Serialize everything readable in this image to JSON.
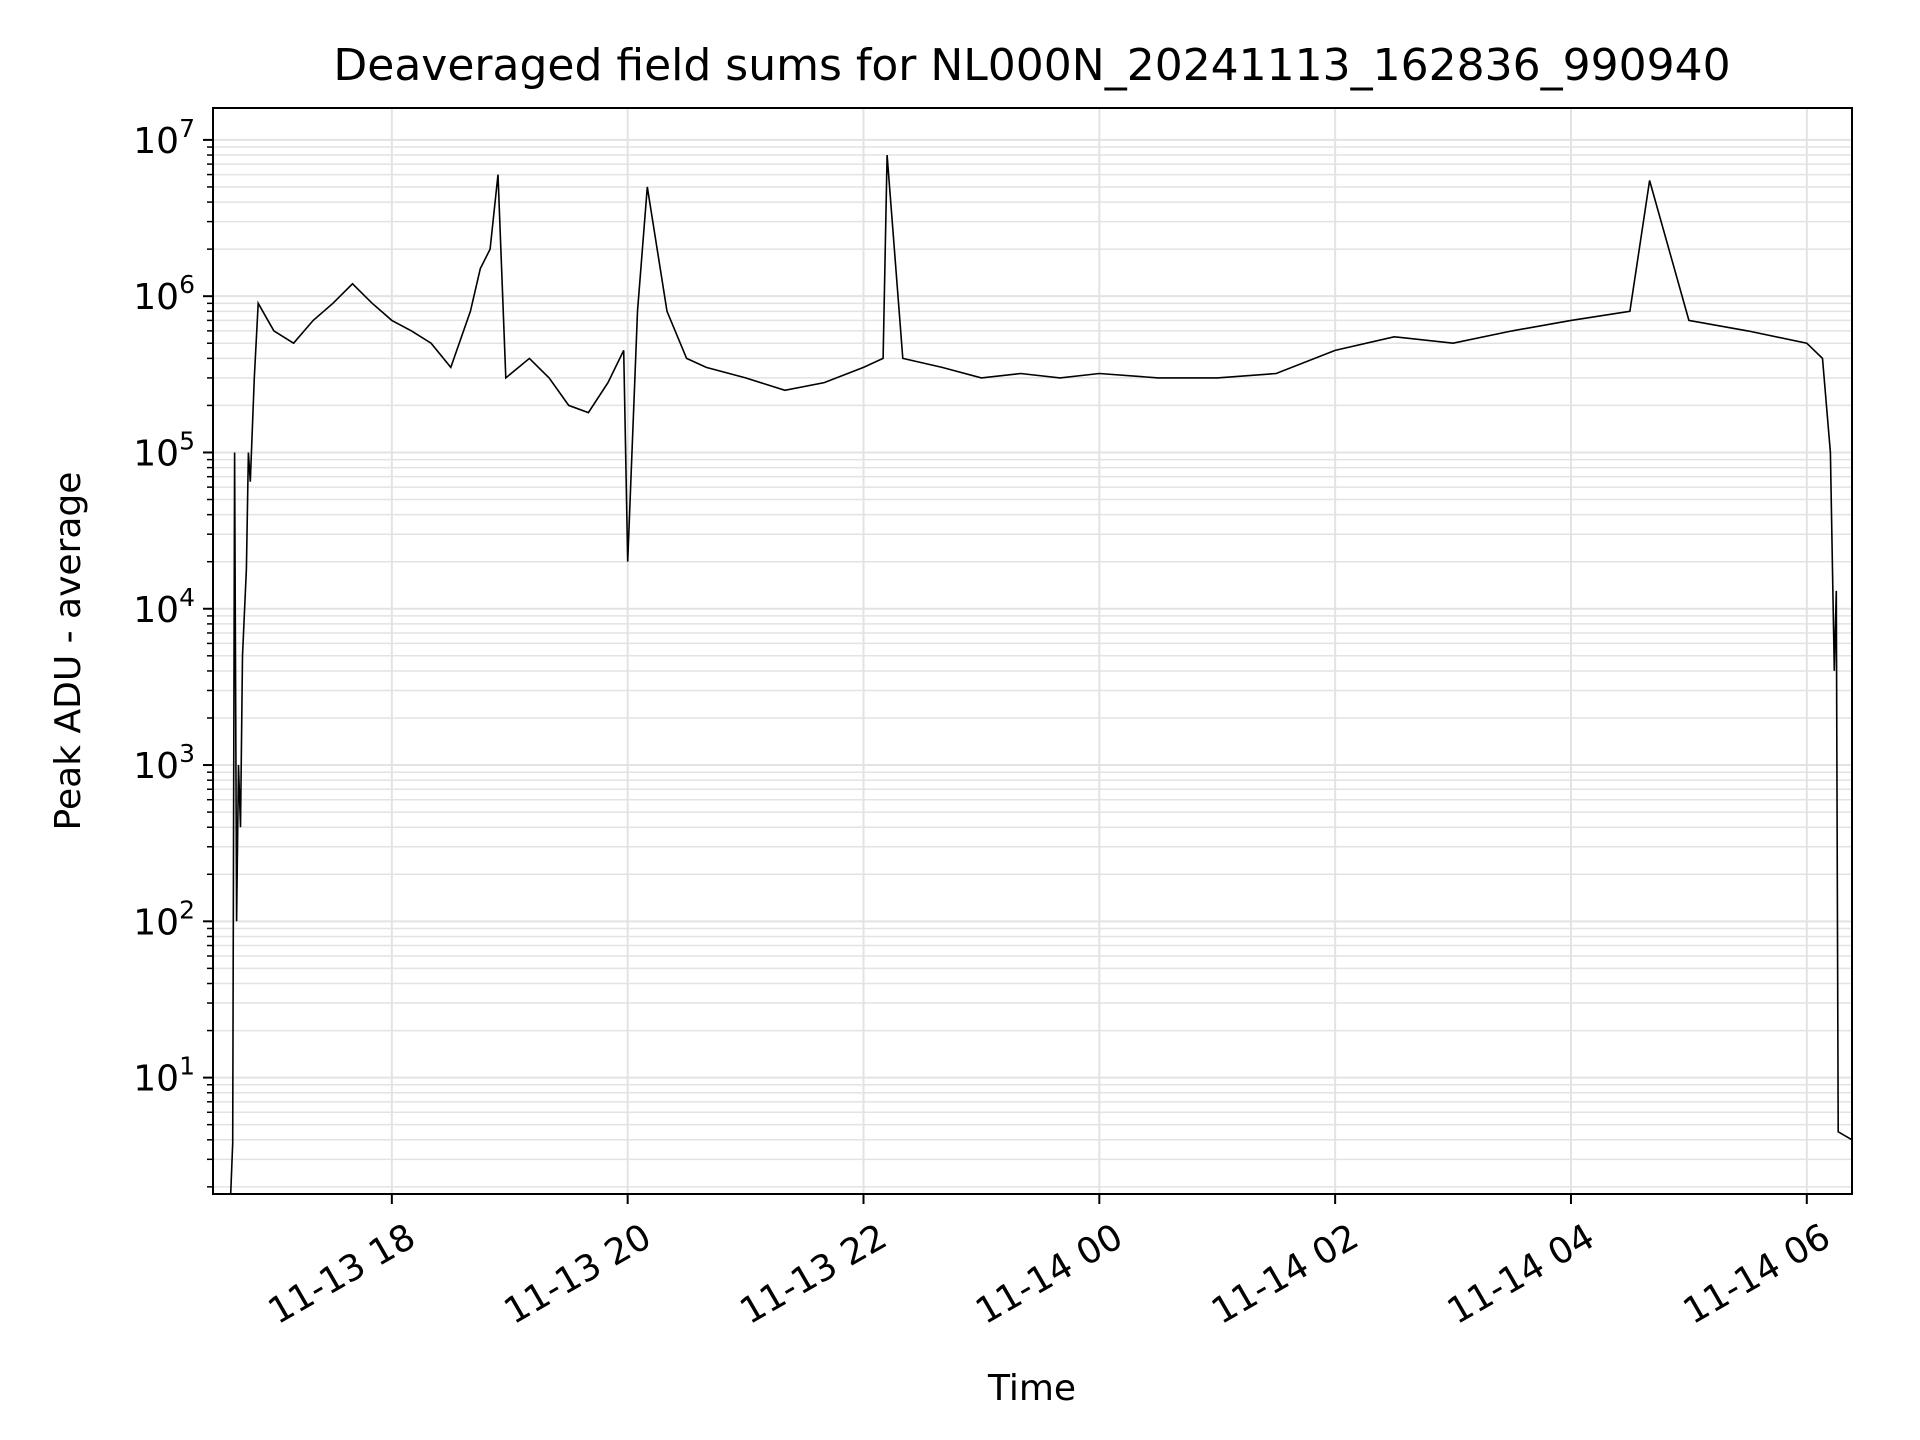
{
  "chart_data": {
    "type": "line",
    "title": "Deaveraged field sums for NL000N_20241113_162836_990940",
    "xlabel": "Time",
    "ylabel": "Peak ADU - average",
    "y_scale": "log",
    "ylim": [
      1.8,
      16000000
    ],
    "xlim": [
      "2024-11-13 16:29",
      "2024-11-14 06:23"
    ],
    "grid": true,
    "line_color": "#000000",
    "grid_color": "#e3e3e3",
    "x_ticks": [
      {
        "label": "11-13 18",
        "value": "2024-11-13 18:00"
      },
      {
        "label": "11-13 20",
        "value": "2024-11-13 20:00"
      },
      {
        "label": "11-13 22",
        "value": "2024-11-13 22:00"
      },
      {
        "label": "11-14 00",
        "value": "2024-11-14 00:00"
      },
      {
        "label": "11-14 02",
        "value": "2024-11-14 02:00"
      },
      {
        "label": "11-14 04",
        "value": "2024-11-14 04:00"
      },
      {
        "label": "11-14 06",
        "value": "2024-11-14 06:00"
      }
    ],
    "y_ticks": [
      {
        "base": "10",
        "exp": "1",
        "value": 10
      },
      {
        "base": "10",
        "exp": "2",
        "value": 100
      },
      {
        "base": "10",
        "exp": "3",
        "value": 1000
      },
      {
        "base": "10",
        "exp": "4",
        "value": 10000
      },
      {
        "base": "10",
        "exp": "5",
        "value": 100000
      },
      {
        "base": "10",
        "exp": "6",
        "value": 1000000
      },
      {
        "base": "10",
        "exp": "7",
        "value": 10000000
      }
    ],
    "series": [
      {
        "points": [
          [
            "2024-11-13 16:38",
            1.8
          ],
          [
            "2024-11-13 16:39",
            3.8
          ],
          [
            "2024-11-13 16:40",
            100000
          ],
          [
            "2024-11-13 16:41",
            100
          ],
          [
            "2024-11-13 16:42",
            1000
          ],
          [
            "2024-11-13 16:43",
            400
          ],
          [
            "2024-11-13 16:44",
            5000
          ],
          [
            "2024-11-13 16:46",
            18000
          ],
          [
            "2024-11-13 16:47",
            100000
          ],
          [
            "2024-11-13 16:48",
            65000
          ],
          [
            "2024-11-13 16:50",
            300000
          ],
          [
            "2024-11-13 16:52",
            900000
          ],
          [
            "2024-11-13 17:00",
            600000
          ],
          [
            "2024-11-13 17:10",
            500000
          ],
          [
            "2024-11-13 17:20",
            700000
          ],
          [
            "2024-11-13 17:30",
            900000
          ],
          [
            "2024-11-13 17:40",
            1200000
          ],
          [
            "2024-11-13 17:50",
            900000
          ],
          [
            "2024-11-13 18:00",
            700000
          ],
          [
            "2024-11-13 18:10",
            600000
          ],
          [
            "2024-11-13 18:20",
            500000
          ],
          [
            "2024-11-13 18:30",
            350000
          ],
          [
            "2024-11-13 18:40",
            800000
          ],
          [
            "2024-11-13 18:45",
            1500000
          ],
          [
            "2024-11-13 18:50",
            2000000
          ],
          [
            "2024-11-13 18:54",
            6000000
          ],
          [
            "2024-11-13 18:58",
            300000
          ],
          [
            "2024-11-13 19:10",
            400000
          ],
          [
            "2024-11-13 19:20",
            300000
          ],
          [
            "2024-11-13 19:30",
            200000
          ],
          [
            "2024-11-13 19:40",
            180000
          ],
          [
            "2024-11-13 19:50",
            280000
          ],
          [
            "2024-11-13 19:58",
            450000
          ],
          [
            "2024-11-13 20:00",
            20000
          ],
          [
            "2024-11-13 20:05",
            800000
          ],
          [
            "2024-11-13 20:10",
            5000000
          ],
          [
            "2024-11-13 20:20",
            800000
          ],
          [
            "2024-11-13 20:30",
            400000
          ],
          [
            "2024-11-13 20:40",
            350000
          ],
          [
            "2024-11-13 21:00",
            300000
          ],
          [
            "2024-11-13 21:20",
            250000
          ],
          [
            "2024-11-13 21:40",
            280000
          ],
          [
            "2024-11-13 22:00",
            350000
          ],
          [
            "2024-11-13 22:10",
            400000
          ],
          [
            "2024-11-13 22:12",
            8000000
          ],
          [
            "2024-11-13 22:20",
            400000
          ],
          [
            "2024-11-13 22:40",
            350000
          ],
          [
            "2024-11-13 23:00",
            300000
          ],
          [
            "2024-11-13 23:20",
            320000
          ],
          [
            "2024-11-13 23:40",
            300000
          ],
          [
            "2024-11-14 00:00",
            320000
          ],
          [
            "2024-11-14 00:30",
            300000
          ],
          [
            "2024-11-14 01:00",
            300000
          ],
          [
            "2024-11-14 01:30",
            320000
          ],
          [
            "2024-11-14 02:00",
            450000
          ],
          [
            "2024-11-14 02:30",
            550000
          ],
          [
            "2024-11-14 03:00",
            500000
          ],
          [
            "2024-11-14 03:30",
            600000
          ],
          [
            "2024-11-14 04:00",
            700000
          ],
          [
            "2024-11-14 04:30",
            800000
          ],
          [
            "2024-11-14 04:40",
            5500000
          ],
          [
            "2024-11-14 05:00",
            700000
          ],
          [
            "2024-11-14 05:30",
            600000
          ],
          [
            "2024-11-14 06:00",
            500000
          ],
          [
            "2024-11-14 06:08",
            400000
          ],
          [
            "2024-11-14 06:12",
            100000
          ],
          [
            "2024-11-14 06:14",
            4000
          ],
          [
            "2024-11-14 06:15",
            13000
          ],
          [
            "2024-11-14 06:16",
            4.5
          ],
          [
            "2024-11-14 06:23",
            4.0
          ]
        ]
      }
    ]
  }
}
